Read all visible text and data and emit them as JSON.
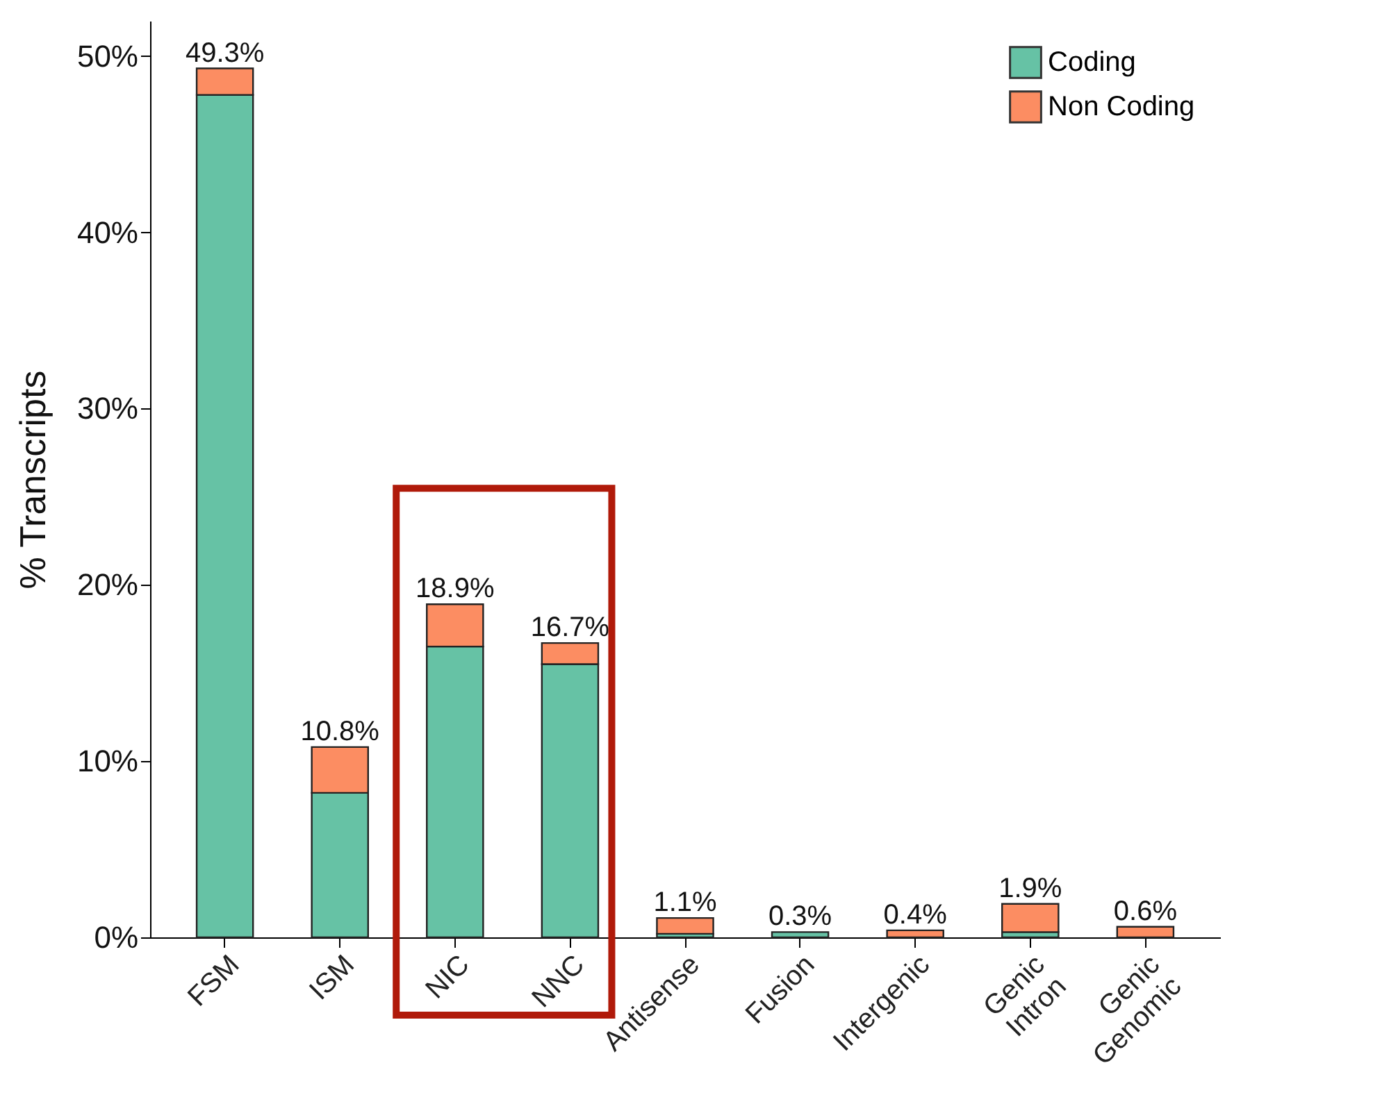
{
  "chart_data": {
    "type": "bar",
    "stacked": true,
    "ylabel": "% Transcripts",
    "categories": [
      "FSM",
      "ISM",
      "NIC",
      "NNC",
      "Antisense",
      "Fusion",
      "Intergenic",
      "Genic\nIntron",
      "Genic\nGenomic"
    ],
    "series": [
      {
        "name": "Coding",
        "color": "#66c2a5",
        "values": [
          47.8,
          8.2,
          16.5,
          15.5,
          0.2,
          0.3,
          null,
          0.3,
          null
        ]
      },
      {
        "name": "Non Coding",
        "color": "#fc8d62",
        "values": [
          1.5,
          2.6,
          2.4,
          1.2,
          0.9,
          null,
          0.4,
          1.6,
          0.6
        ]
      }
    ],
    "totals": [
      "49.3%",
      "10.8%",
      "18.9%",
      "16.7%",
      "1.1%",
      "0.3%",
      "0.4%",
      "1.9%",
      "0.6%"
    ],
    "ylim": [
      0,
      52
    ],
    "yticks": [
      {
        "value": 0,
        "label": "0%"
      },
      {
        "value": 10,
        "label": "10%"
      },
      {
        "value": 20,
        "label": "20%"
      },
      {
        "value": 30,
        "label": "30%"
      },
      {
        "value": 40,
        "label": "40%"
      },
      {
        "value": 50,
        "label": "50%"
      }
    ],
    "grid": false,
    "legend": "top right"
  }
}
